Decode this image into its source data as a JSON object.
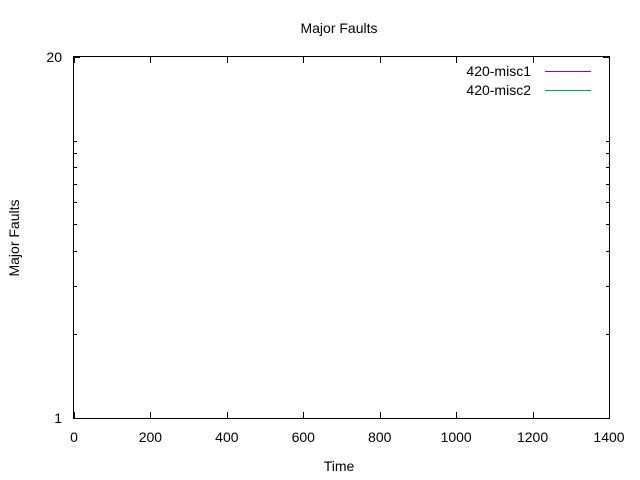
{
  "chart_data": {
    "type": "line",
    "title": "Major Faults",
    "xlabel": "Time",
    "ylabel": "Major Faults",
    "xlim": [
      0,
      1400
    ],
    "ylim": [
      1,
      20
    ],
    "yscale": "log",
    "grid": false,
    "legend_position": "top-right",
    "x_ticks": [
      0,
      200,
      400,
      600,
      800,
      1000,
      1200,
      1400
    ],
    "y_tick_labels": [
      1,
      20
    ],
    "series": [
      {
        "name": "420-misc1",
        "color": "#9400d3",
        "points": []
      },
      {
        "name": "420-misc2",
        "color": "#009e73",
        "points": []
      }
    ]
  }
}
